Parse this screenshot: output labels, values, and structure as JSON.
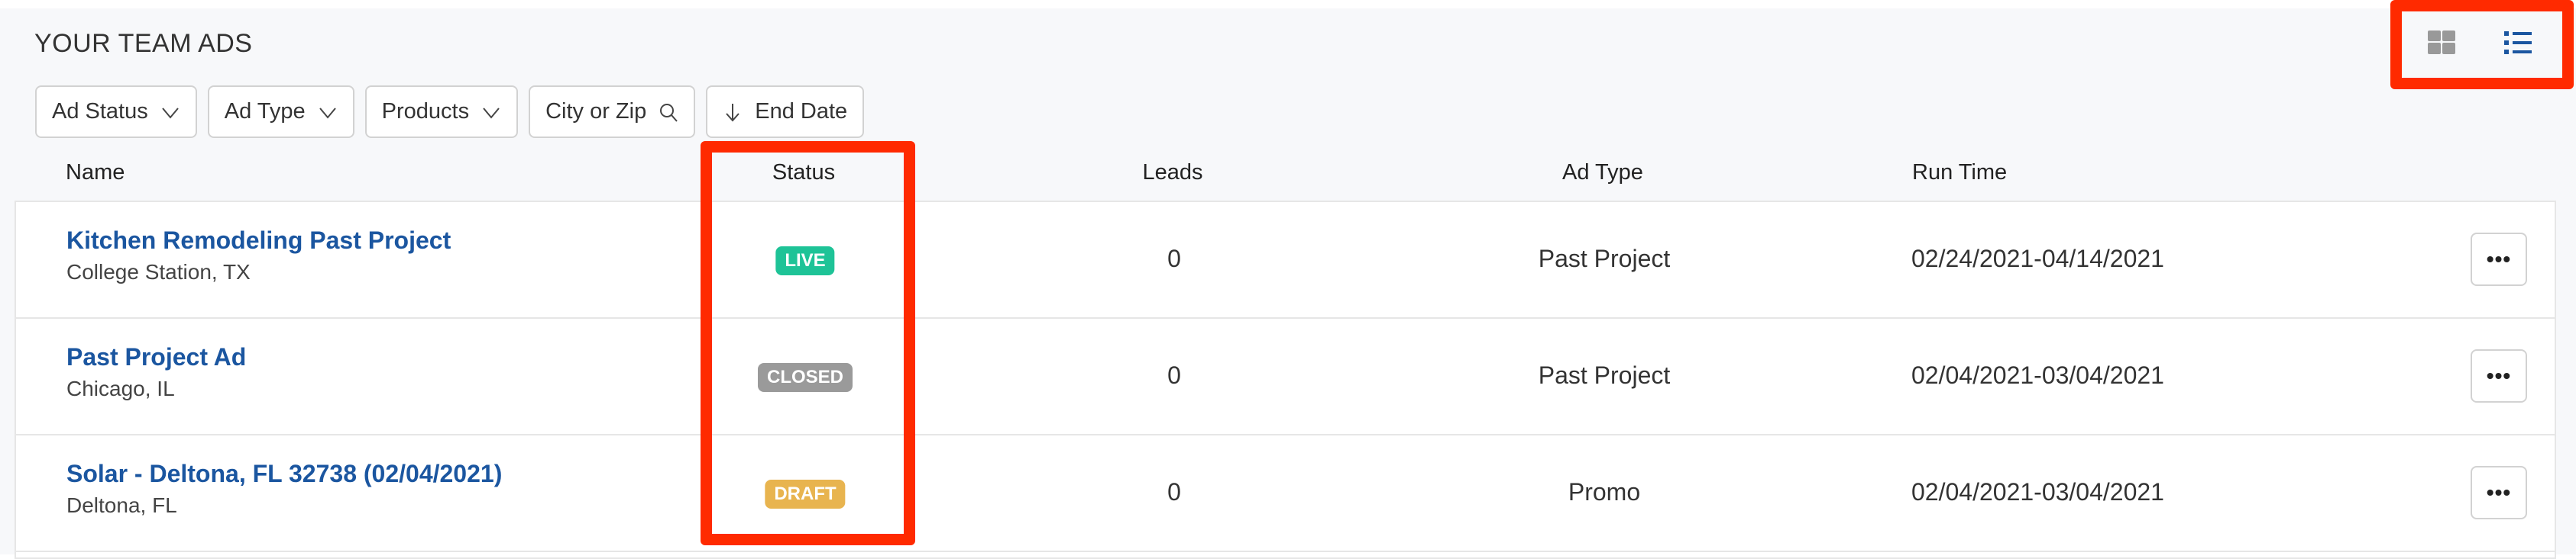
{
  "header": {
    "title": "YOUR TEAM ADS"
  },
  "filters": {
    "ad_status": "Ad Status",
    "ad_type": "Ad Type",
    "products": "Products",
    "city_zip": "City or Zip",
    "end_date": "End Date"
  },
  "view_toggle": {
    "grid_icon": "grid-icon",
    "list_icon": "list-icon",
    "active": "list"
  },
  "columns": {
    "name": "Name",
    "status": "Status",
    "leads": "Leads",
    "ad_type": "Ad Type",
    "run_time": "Run Time"
  },
  "rows": [
    {
      "name": "Kitchen Remodeling Past Project",
      "location": "College Station, TX",
      "status": "LIVE",
      "status_color": "#1ec397",
      "leads": "0",
      "ad_type": "Past Project",
      "run_time": "02/24/2021-04/14/2021",
      "menu": "•••"
    },
    {
      "name": "Past Project Ad",
      "location": "Chicago, IL",
      "status": "CLOSED",
      "status_color": "#9a9a9a",
      "leads": "0",
      "ad_type": "Past Project",
      "run_time": "02/04/2021-03/04/2021",
      "menu": "•••"
    },
    {
      "name": "Solar - Deltona, FL 32738 (02/04/2021)",
      "location": "Deltona, FL",
      "status": "DRAFT",
      "status_color": "#e8b44f",
      "leads": "0",
      "ad_type": "Promo",
      "run_time": "02/04/2021-03/04/2021",
      "menu": "•••"
    }
  ],
  "colors": {
    "link": "#1b56a0",
    "highlight": "#ff2a00"
  }
}
